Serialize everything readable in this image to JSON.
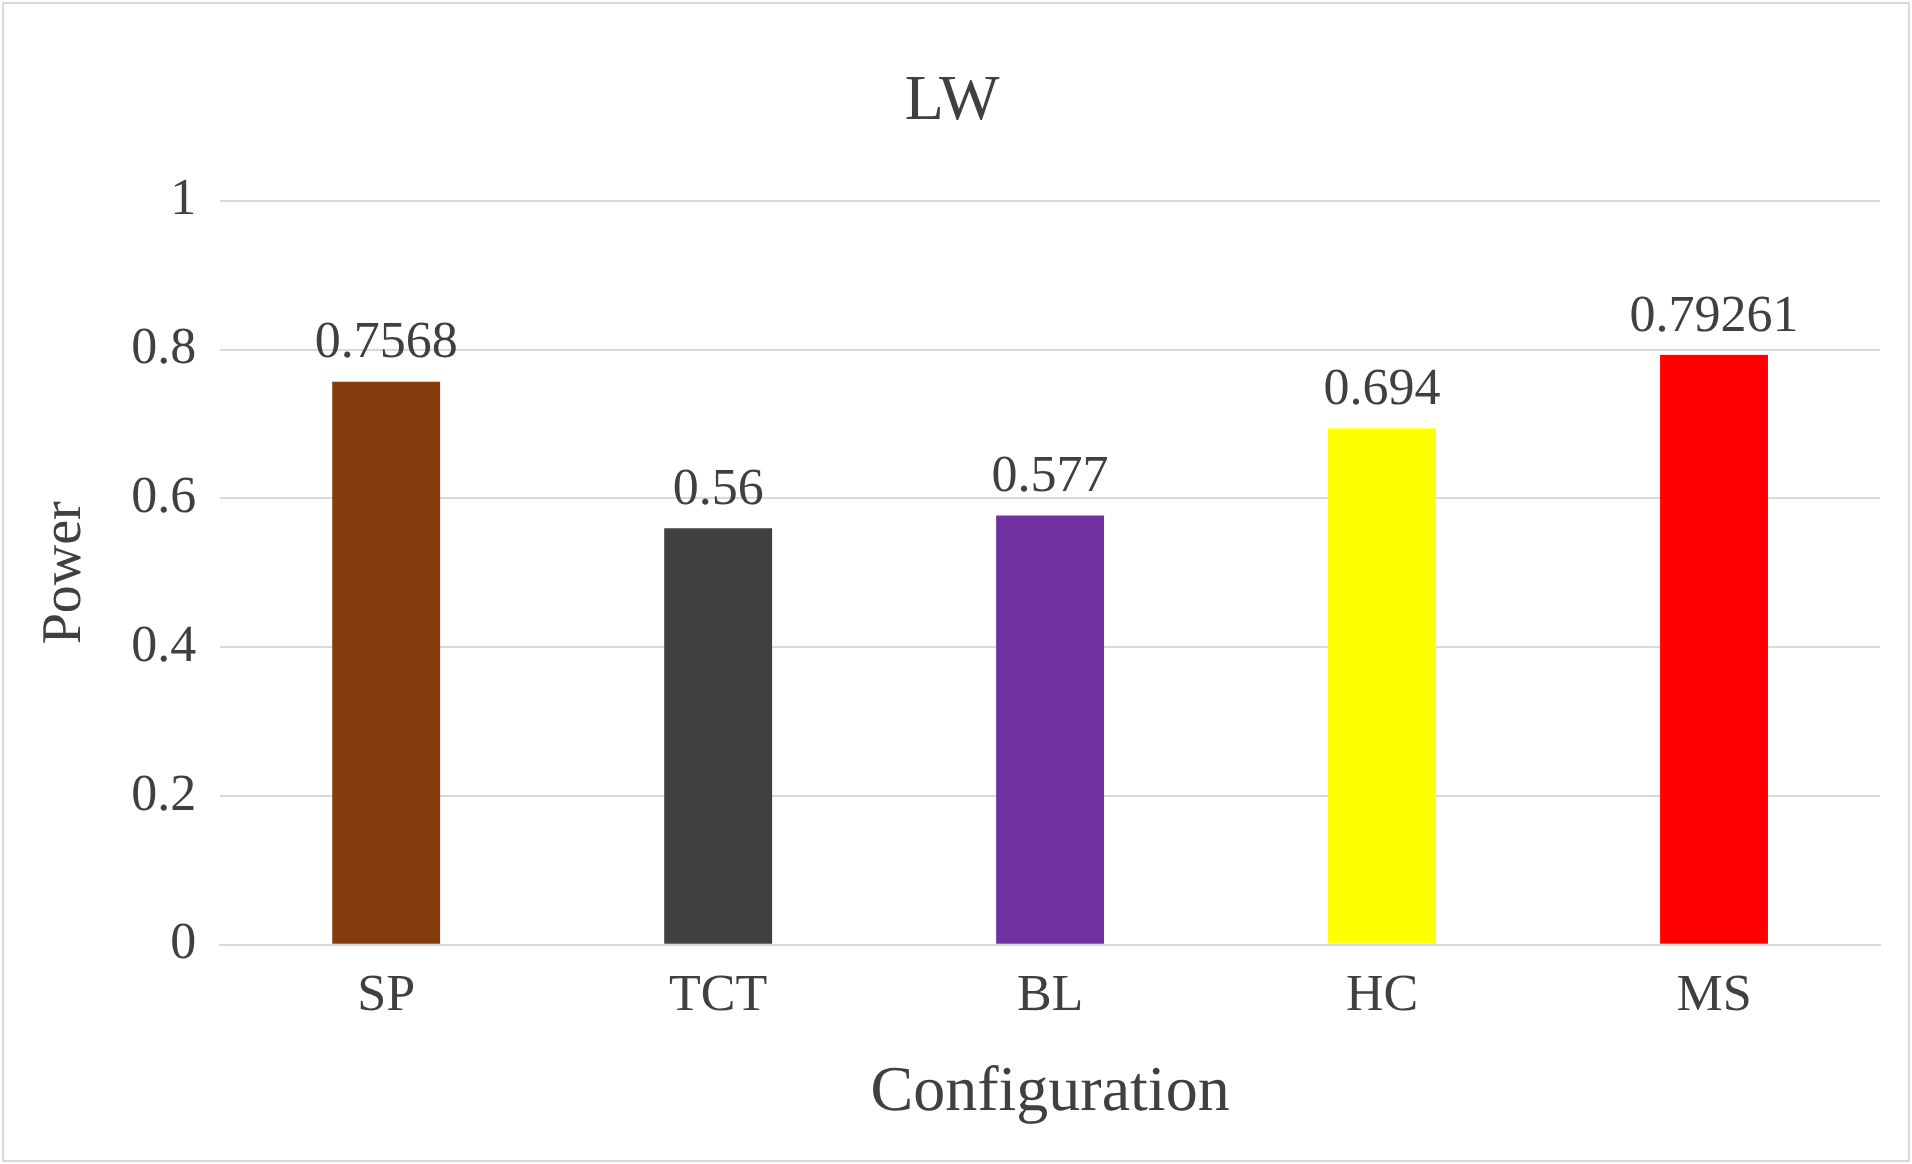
{
  "chart_data": {
    "type": "bar",
    "title": "LW",
    "xlabel": "Configuration",
    "ylabel": "Power",
    "categories": [
      "SP",
      "TCT",
      "BL",
      "HC",
      "MS"
    ],
    "values": [
      0.7568,
      0.56,
      0.577,
      0.694,
      0.79261
    ],
    "colors": [
      "#843c0c",
      "#404040",
      "#7030a0",
      "#ffff00",
      "#ff0000"
    ],
    "ylim": [
      0,
      1
    ],
    "yticks": [
      0,
      0.2,
      0.4,
      0.6,
      0.8,
      1
    ],
    "grid": "y",
    "data_labels": true,
    "legend": false
  }
}
